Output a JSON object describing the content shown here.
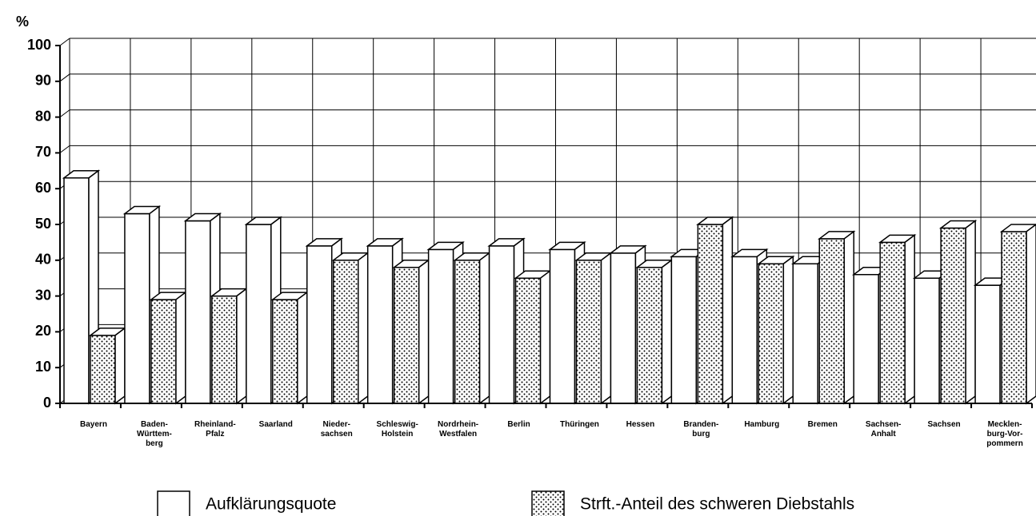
{
  "chart_data": {
    "type": "bar3d",
    "y_unit_label": "%",
    "categories": [
      "Bayern",
      "Baden-\nWürttem-\nberg",
      "Rheinland-\nPfalz",
      "Saarland",
      "Nieder-\nsachsen",
      "Schleswig-\nHolstein",
      "Nordrhein-\nWestfalen",
      "Berlin",
      "Thüringen",
      "Hessen",
      "Branden-\nburg",
      "Hamburg",
      "Bremen",
      "Sachsen-\nAnhalt",
      "Sachsen",
      "Mecklen-\nburg-Vor-\npommern"
    ],
    "series": [
      {
        "name": "Aufklärungsquote",
        "color": "#ffffff",
        "pattern": "none",
        "values": [
          63,
          53,
          51,
          50,
          44,
          44,
          43,
          44,
          43,
          42,
          41,
          41,
          39,
          36,
          35,
          33
        ]
      },
      {
        "name": "Strft.-Anteil des schweren Diebstahls",
        "color": "#ffffff",
        "pattern": "dots",
        "values": [
          19,
          29,
          30,
          29,
          40,
          38,
          40,
          35,
          40,
          38,
          50,
          39,
          46,
          45,
          49,
          48
        ]
      }
    ],
    "ylim": [
      0,
      100
    ],
    "yticks": [
      0,
      10,
      20,
      30,
      40,
      50,
      60,
      70,
      80,
      90,
      100
    ],
    "grid": true
  }
}
